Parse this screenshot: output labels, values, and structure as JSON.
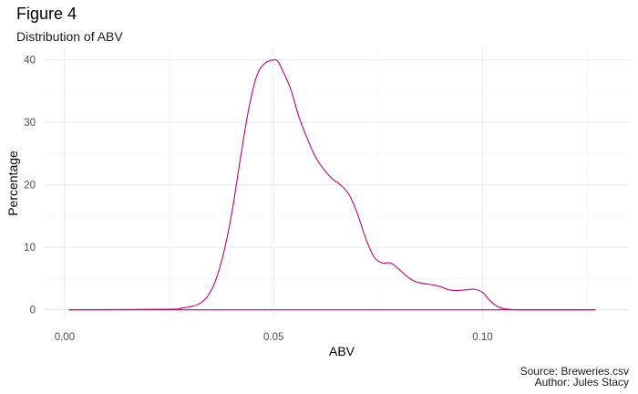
{
  "title": "Figure 4",
  "subtitle": "Distribution of ABV",
  "caption": [
    "Source: Breweries.csv",
    "Author: Jules Stacy"
  ],
  "chart_data": {
    "type": "line",
    "xlabel": "ABV",
    "ylabel": "Percentage",
    "xlim": [
      -0.005,
      0.135
    ],
    "ylim": [
      -1.5,
      42
    ],
    "x_ticks": [
      0.0,
      0.05,
      0.1
    ],
    "x_tick_labels": [
      "0.00",
      "0.05",
      "0.10"
    ],
    "y_ticks": [
      0,
      10,
      20,
      30,
      40
    ],
    "y_tick_labels": [
      "0",
      "10",
      "20",
      "30",
      "40"
    ],
    "grid": true,
    "line_color": "#c2007a",
    "series": [
      {
        "x": [
          0.001,
          0.025,
          0.028,
          0.03,
          0.032,
          0.034,
          0.036,
          0.038,
          0.04,
          0.042,
          0.044,
          0.046,
          0.048,
          0.05,
          0.051,
          0.052,
          0.054,
          0.056,
          0.058,
          0.06,
          0.062,
          0.064,
          0.066,
          0.068,
          0.07,
          0.072,
          0.074,
          0.076,
          0.078,
          0.08,
          0.082,
          0.084,
          0.086,
          0.088,
          0.09,
          0.092,
          0.094,
          0.096,
          0.098,
          0.1,
          0.102,
          0.104,
          0.106,
          0.108,
          0.11,
          0.127
        ],
        "y": [
          0,
          0.1,
          0.3,
          0.5,
          0.9,
          2.0,
          4.5,
          9.0,
          15.5,
          24.0,
          32.0,
          37.5,
          39.5,
          40.0,
          39.8,
          38.5,
          35.5,
          31.0,
          27.5,
          24.5,
          22.5,
          21.0,
          20.0,
          18.5,
          15.5,
          11.5,
          8.5,
          7.5,
          7.5,
          6.5,
          5.3,
          4.5,
          4.2,
          4.0,
          3.7,
          3.2,
          3.1,
          3.2,
          3.3,
          2.8,
          1.3,
          0.4,
          0.1,
          0.02,
          0,
          0
        ]
      }
    ]
  }
}
